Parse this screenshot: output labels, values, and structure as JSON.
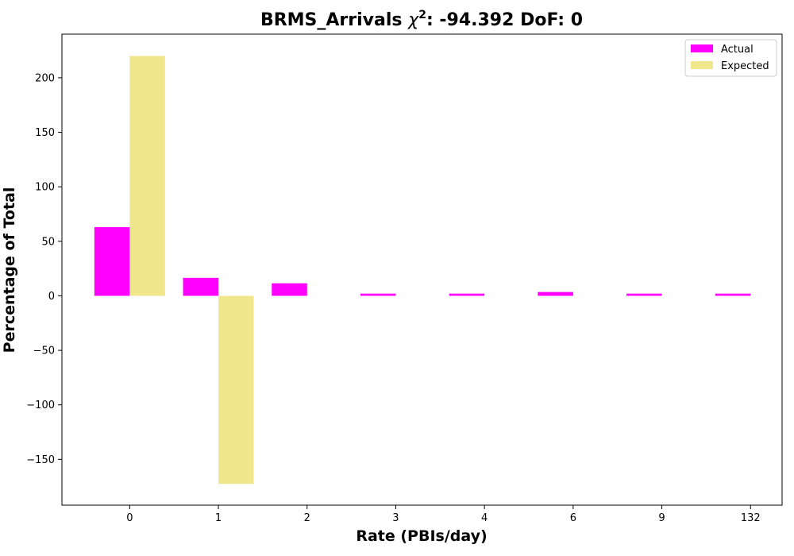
{
  "chart_data": {
    "type": "bar",
    "title": "BRMS_Arrivals χ²: -94.392 DoF: 0",
    "title_main": "BRMS_Arrivals ",
    "title_chi": "χ",
    "title_sup": "2",
    "title_rest": ": -94.392 DoF: 0",
    "xlabel": "Rate (PBIs/day)",
    "ylabel": "Percentage of Total",
    "categories": [
      "0",
      "1",
      "2",
      "3",
      "4",
      "6",
      "9",
      "132"
    ],
    "series": [
      {
        "name": "Actual",
        "color": "#ff00ff",
        "values": [
          63.0,
          16.5,
          11.5,
          2.0,
          2.0,
          3.5,
          2.0,
          2.0
        ]
      },
      {
        "name": "Expected",
        "color": "#f0e68c",
        "values": [
          220.0,
          -172.5,
          0,
          0,
          0,
          0,
          0,
          0
        ]
      }
    ],
    "ylim": [
      -192,
      240
    ],
    "yticks": [
      -150,
      -100,
      -50,
      0,
      50,
      100,
      150,
      200
    ],
    "ytick_labels": [
      "−150",
      "−100",
      "−50",
      "0",
      "50",
      "100",
      "150",
      "200"
    ],
    "grid": false,
    "legend_position": "top-right"
  }
}
